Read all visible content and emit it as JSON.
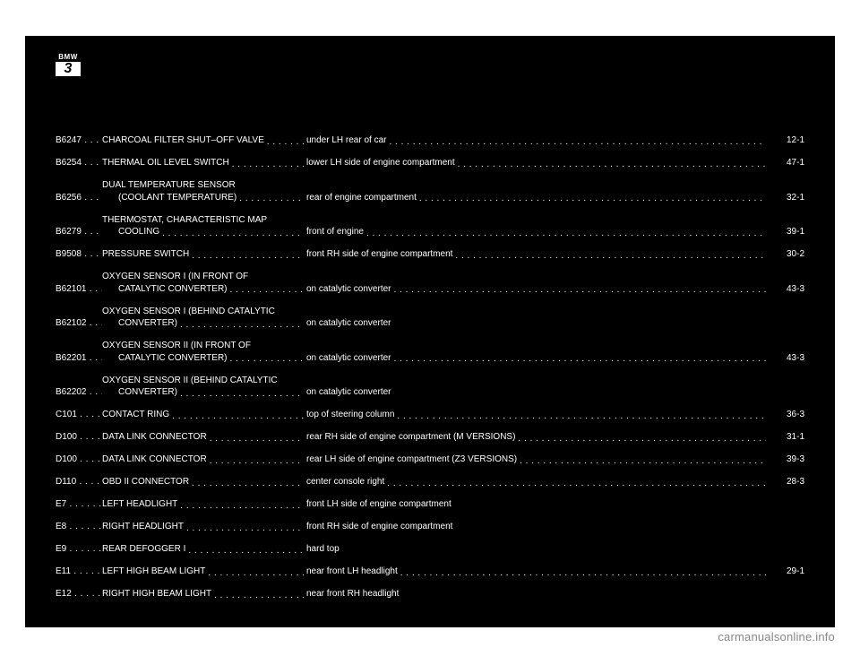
{
  "logo": {
    "brand": "BMW",
    "series": "3"
  },
  "footer": "carmanualsonline.info",
  "colors": {
    "page_bg": "#ffffff",
    "panel_bg": "#000000",
    "text": "#ffffff",
    "footer": "#888888",
    "logo_box_bg": "#ffffff",
    "logo_box_text": "#000000"
  },
  "typography": {
    "font_family": "Arial",
    "row_fontsize_pt": 8
  },
  "rows": [
    {
      "code": "B6247",
      "name_lines": [
        "CHARCOAL FILTER SHUT–OFF VALVE"
      ],
      "location": "under LH rear of car",
      "page": "12-1",
      "has_page": true
    },
    {
      "code": "B6254",
      "name_lines": [
        "THERMAL OIL LEVEL SWITCH"
      ],
      "location": "lower LH side of engine compartment",
      "page": "47-1",
      "has_page": true
    },
    {
      "code": "B6256",
      "name_lines": [
        "DUAL TEMPERATURE SENSOR",
        "(COOLANT TEMPERATURE)"
      ],
      "location": "rear of engine compartment",
      "page": "32-1",
      "has_page": true
    },
    {
      "code": "B6279",
      "name_lines": [
        "THERMOSTAT, CHARACTERISTIC MAP",
        "COOLING"
      ],
      "location": "front of engine",
      "page": "39-1",
      "has_page": true
    },
    {
      "code": "B9508",
      "name_lines": [
        "PRESSURE SWITCH"
      ],
      "location": "front RH side of engine compartment",
      "page": "30-2",
      "has_page": true
    },
    {
      "code": "B62101",
      "name_lines": [
        "OXYGEN SENSOR I (IN FRONT OF",
        "CATALYTIC CONVERTER)"
      ],
      "location": "on catalytic converter",
      "page": "43-3",
      "has_page": true
    },
    {
      "code": "B62102",
      "name_lines": [
        "OXYGEN SENSOR I (BEHIND CATALYTIC",
        "CONVERTER)"
      ],
      "location": "on catalytic converter",
      "page": "",
      "has_page": false
    },
    {
      "code": "B62201",
      "name_lines": [
        "OXYGEN SENSOR II (IN FRONT OF",
        "CATALYTIC CONVERTER)"
      ],
      "location": "on catalytic converter",
      "page": "43-3",
      "has_page": true
    },
    {
      "code": "B62202",
      "name_lines": [
        "OXYGEN SENSOR II (BEHIND CATALYTIC",
        "CONVERTER)"
      ],
      "location": "on catalytic converter",
      "page": "",
      "has_page": false
    },
    {
      "code": "C101",
      "name_lines": [
        "CONTACT RING"
      ],
      "location": "top of steering column",
      "page": "36-3",
      "has_page": true
    },
    {
      "code": "D100",
      "name_lines": [
        "DATA LINK CONNECTOR"
      ],
      "location": "rear RH side of engine compartment (M VERSIONS)",
      "page": "31-1",
      "has_page": true
    },
    {
      "code": "D100",
      "name_lines": [
        "DATA LINK CONNECTOR"
      ],
      "location": "rear LH side of engine compartment (Z3 VERSIONS)",
      "page": "39-3",
      "has_page": true
    },
    {
      "code": "D110",
      "name_lines": [
        "OBD II CONNECTOR"
      ],
      "location": "center console right",
      "page": "28-3",
      "has_page": true
    },
    {
      "code": "E7",
      "name_lines": [
        "LEFT HEADLIGHT"
      ],
      "location": "front LH side of engine compartment",
      "page": "",
      "has_page": false
    },
    {
      "code": "E8",
      "name_lines": [
        "RIGHT HEADLIGHT"
      ],
      "location": "front RH side of engine compartment",
      "page": "",
      "has_page": false
    },
    {
      "code": "E9",
      "name_lines": [
        "REAR DEFOGGER I"
      ],
      "location": "hard top",
      "page": "",
      "has_page": false
    },
    {
      "code": "E11",
      "name_lines": [
        "LEFT HIGH BEAM LIGHT"
      ],
      "location": "near front LH headlight",
      "page": "29-1",
      "has_page": true
    },
    {
      "code": "E12",
      "name_lines": [
        "RIGHT HIGH BEAM LIGHT"
      ],
      "location": "near front RH headlight",
      "page": "",
      "has_page": false
    }
  ]
}
